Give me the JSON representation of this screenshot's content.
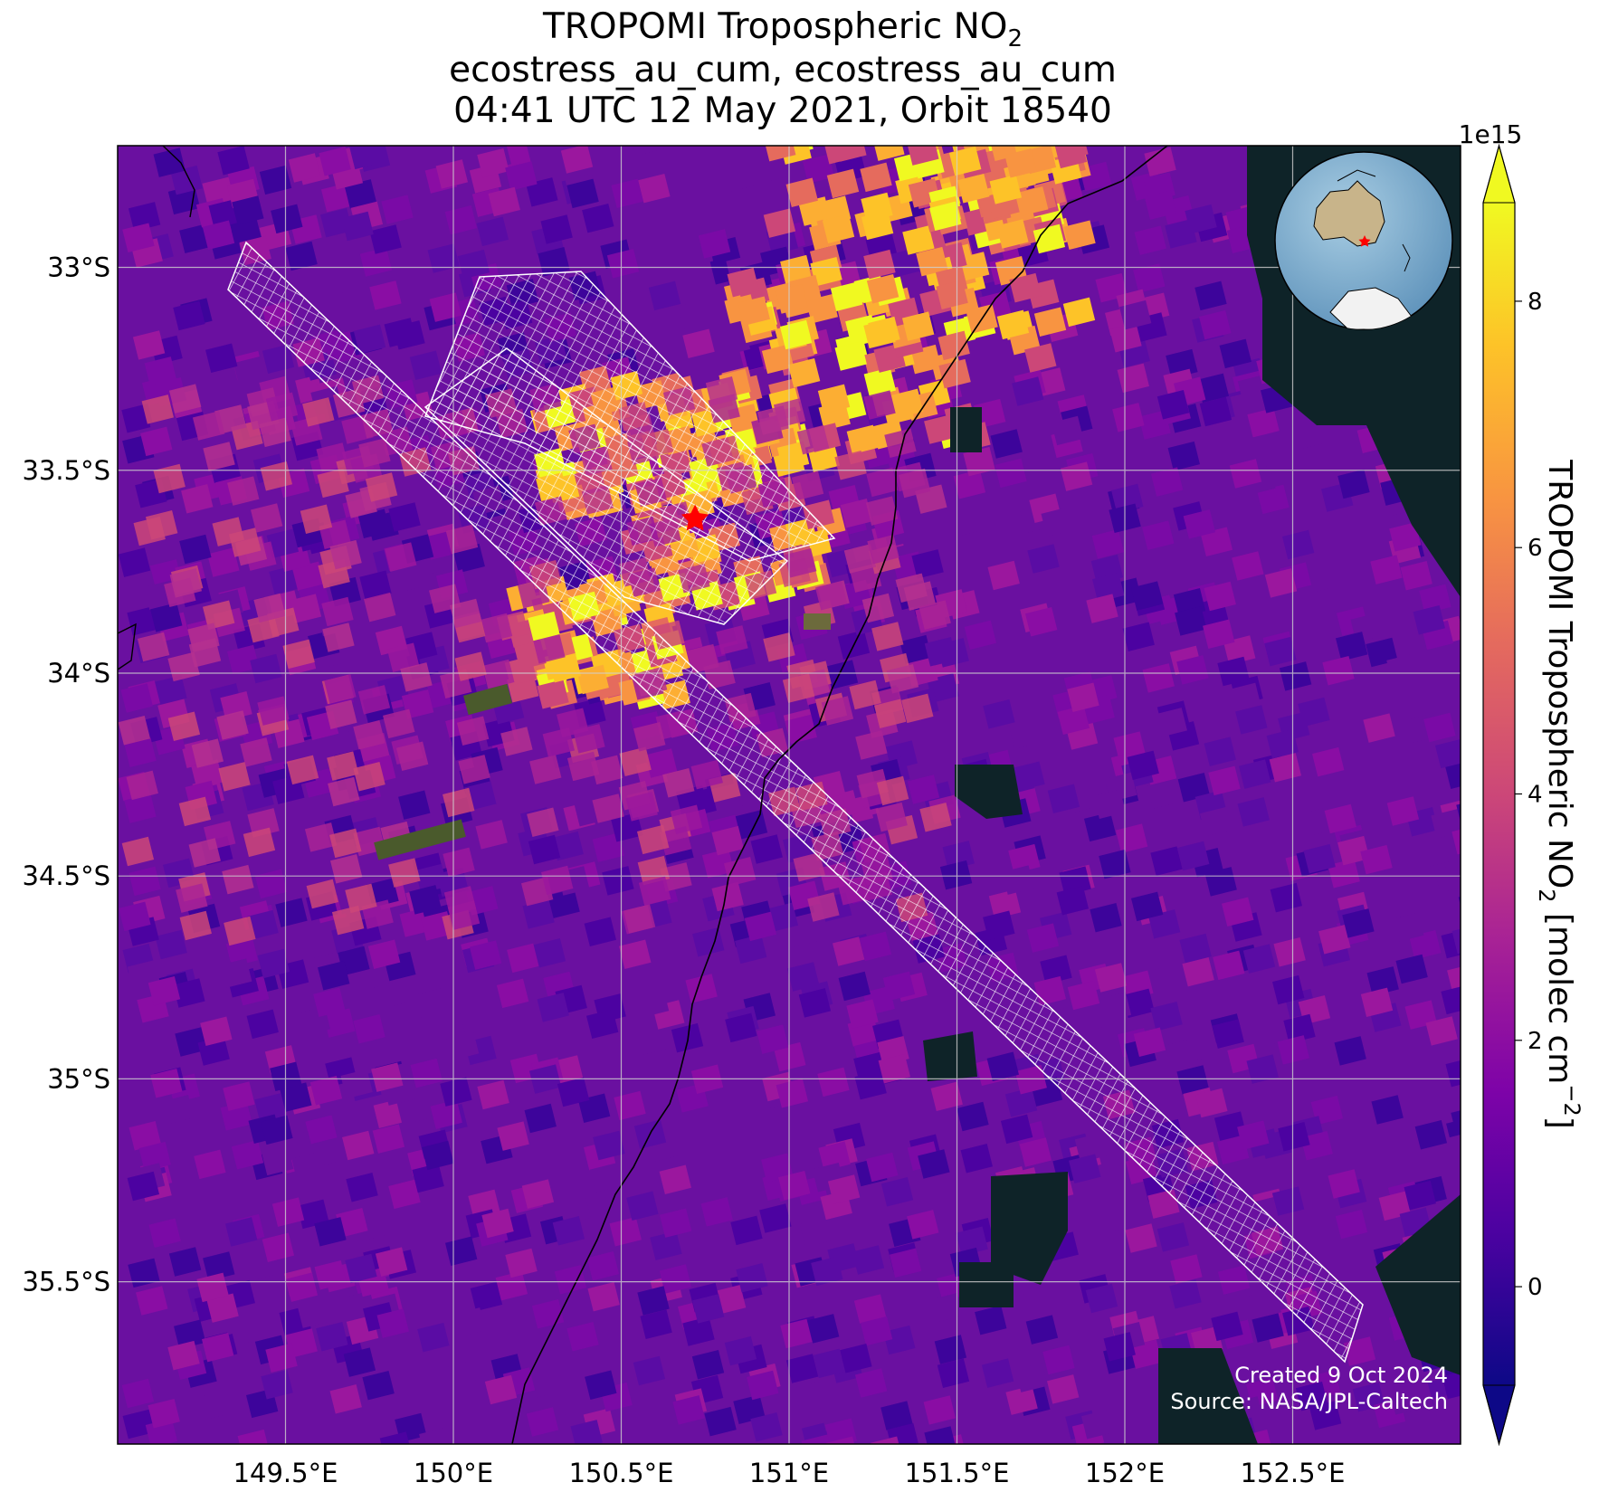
{
  "title": {
    "line1": "TROPOMI Tropospheric NO",
    "line1_sub": "2",
    "line2": "ecostress_au_cum, ecostress_au_cum",
    "line3": "04:41 UTC 12 May 2021, Orbit 18540"
  },
  "map": {
    "projection": "lat-lon",
    "lon_range": [
      149.0,
      153.0
    ],
    "lat_range": [
      -35.9,
      -32.7
    ],
    "lon_ticks": [
      149.5,
      150.0,
      150.5,
      151.0,
      151.5,
      152.0,
      152.5
    ],
    "lon_tick_labels": [
      "149.5°E",
      "150°E",
      "150.5°E",
      "151°E",
      "151.5°E",
      "152°E",
      "152.5°E"
    ],
    "lat_ticks": [
      -33.0,
      -33.5,
      -34.0,
      -34.5,
      -35.0,
      -35.5
    ],
    "lat_tick_labels": [
      "33°S",
      "33.5°S",
      "34°S",
      "34.5°S",
      "35°S",
      "35.5°S"
    ],
    "grid": true,
    "target_marker": {
      "lon": 150.72,
      "lat": -33.62,
      "color": "#ff0000",
      "symbol": "star"
    },
    "swath_outline_color": "#ffffff",
    "inset": {
      "type": "globe",
      "placement": "top-right",
      "marker_color": "#ff0000"
    }
  },
  "colorbar": {
    "label": "TROPOMI Tropospheric NO",
    "label_sub": "2",
    "label_units": " [molec cm",
    "label_units_sup": "−2",
    "label_end": "]",
    "scale_label": "1e15",
    "range": [
      -0.8,
      8.8
    ],
    "ticks": [
      0,
      2,
      4,
      6,
      8
    ],
    "tick_labels": [
      "0",
      "2",
      "4",
      "6",
      "8"
    ],
    "colormap": "plasma",
    "extend": "both"
  },
  "credits": {
    "created": "Created 9 Oct 2024",
    "source": "Source: NASA/JPL-Caltech"
  },
  "colors": {
    "ocean_nodata": "#0e2328",
    "grid": "#d0d0d0",
    "background_no2": "#6a10a0",
    "high_no2": "#fdd12e"
  }
}
